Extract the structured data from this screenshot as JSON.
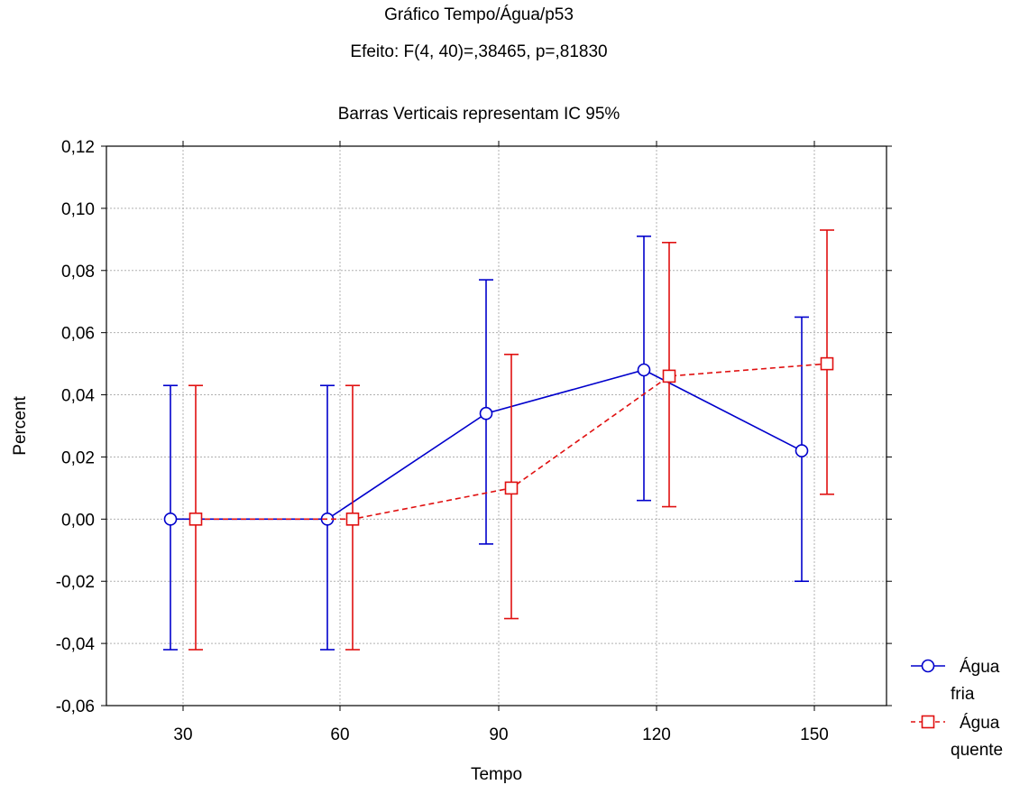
{
  "chart_data": {
    "type": "line",
    "title": "Gráfico Tempo/Água/p53",
    "subtitle": "Efeito: F(4, 40)=,38465, p=,81830",
    "note": "Barras Verticais representam IC 95%",
    "xlabel": "Tempo",
    "ylabel": "Percent",
    "categories": [
      "30",
      "60",
      "90",
      "120",
      "150"
    ],
    "yticks": [
      "0,12",
      "0,10",
      "0,08",
      "0,06",
      "0,04",
      "0,02",
      "0,00",
      "-0,02",
      "-0,04",
      "-0,06"
    ],
    "ylim": [
      -0.06,
      0.12
    ],
    "grid": true,
    "legend_position": "right",
    "series": [
      {
        "name": "Água fria",
        "legend_lines": [
          "Água",
          "fria"
        ],
        "color": "#0000cc",
        "marker": "circle",
        "line_style": "solid",
        "values": [
          0.0,
          0.0,
          0.034,
          0.048,
          0.022
        ],
        "ci_low": [
          -0.042,
          -0.042,
          -0.008,
          0.006,
          -0.02
        ],
        "ci_high": [
          0.043,
          0.043,
          0.077,
          0.091,
          0.065
        ]
      },
      {
        "name": "Água quente",
        "legend_lines": [
          "Água",
          "quente"
        ],
        "color": "#e01010",
        "marker": "square",
        "line_style": "dashed",
        "values": [
          0.0,
          0.0,
          0.01,
          0.046,
          0.05
        ],
        "ci_low": [
          -0.042,
          -0.042,
          -0.032,
          0.004,
          0.008
        ],
        "ci_high": [
          0.043,
          0.043,
          0.053,
          0.089,
          0.093
        ]
      }
    ]
  }
}
